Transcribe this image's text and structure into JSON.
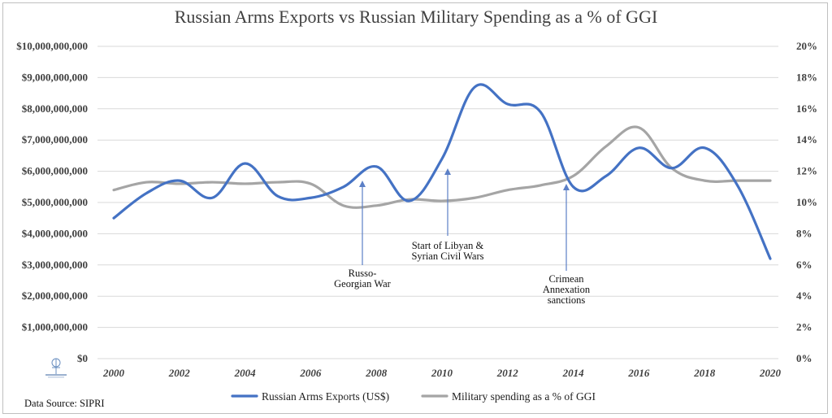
{
  "title": "Russian Arms Exports vs Russian Military Spending as a % of GGI",
  "source": "Data Source: SIPRI",
  "colors": {
    "exports": "#4472c4",
    "spending": "#a5a5a5",
    "grid": "#d9d9d9",
    "annotation_arrow": "#5b7fc6"
  },
  "chart_data": {
    "type": "line",
    "title": "Russian Arms Exports vs Russian Military Spending as a % of GGI",
    "x": [
      2000,
      2001,
      2002,
      2003,
      2004,
      2005,
      2006,
      2007,
      2008,
      2009,
      2010,
      2011,
      2012,
      2013,
      2014,
      2015,
      2016,
      2017,
      2018,
      2019,
      2020
    ],
    "x_tick_labels": [
      "2000",
      "2002",
      "2004",
      "2006",
      "2008",
      "2010",
      "2012",
      "2014",
      "2016",
      "2018",
      "2020"
    ],
    "left_axis": {
      "ylim": [
        0,
        10000000000
      ],
      "tick_labels": [
        "$0",
        "$1,000,000,000",
        "$2,000,000,000",
        "$3,000,000,000",
        "$4,000,000,000",
        "$5,000,000,000",
        "$6,000,000,000",
        "$7,000,000,000",
        "$8,000,000,000",
        "$9,000,000,000",
        "$10,000,000,000"
      ]
    },
    "right_axis": {
      "ylim": [
        0,
        20
      ],
      "tick_labels": [
        "0%",
        "2%",
        "4%",
        "6%",
        "8%",
        "10%",
        "12%",
        "14%",
        "16%",
        "18%",
        "20%"
      ]
    },
    "grid": true,
    "legend_position": "bottom",
    "series": [
      {
        "name": "Russian Arms Exports (US$)",
        "axis": "left",
        "values": [
          4500000000,
          5300000000,
          5700000000,
          5150000000,
          6250000000,
          5200000000,
          5150000000,
          5500000000,
          6150000000,
          5050000000,
          6400000000,
          8700000000,
          8150000000,
          7900000000,
          5500000000,
          5850000000,
          6750000000,
          6100000000,
          6750000000,
          5550000000,
          3200000000
        ]
      },
      {
        "name": "Military spending as a % of GGI",
        "axis": "right",
        "values": [
          10.8,
          11.3,
          11.2,
          11.3,
          11.2,
          11.3,
          11.2,
          9.8,
          9.8,
          10.2,
          10.1,
          10.3,
          10.8,
          11.1,
          11.7,
          13.6,
          14.8,
          12.2,
          11.4,
          11.4,
          11.4
        ]
      }
    ],
    "annotations": [
      {
        "x": 2008,
        "lines": [
          "Russo-",
          "Georgian War"
        ]
      },
      {
        "x": 2010,
        "lines": [
          "Start of Libyan &",
          "Syrian Civil Wars"
        ]
      },
      {
        "x": 2014,
        "lines": [
          "Crimean",
          "Annexation",
          "sanctions"
        ]
      }
    ]
  }
}
